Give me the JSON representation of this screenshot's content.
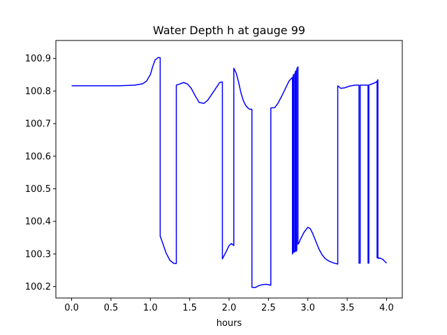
{
  "chart_data": {
    "type": "line",
    "title": "Water Depth h at gauge 99",
    "xlabel": "hours",
    "ylabel": "",
    "xlim": [
      -0.2,
      4.2
    ],
    "ylim": [
      100.165,
      100.955
    ],
    "grid": false,
    "xticks": [
      0.0,
      0.5,
      1.0,
      1.5,
      2.0,
      2.5,
      3.0,
      3.5,
      4.0
    ],
    "xtick_labels": [
      "0.0",
      "0.5",
      "1.0",
      "1.5",
      "2.0",
      "2.5",
      "3.0",
      "3.5",
      "4.0"
    ],
    "yticks": [
      100.2,
      100.3,
      100.4,
      100.5,
      100.6,
      100.7,
      100.8,
      100.9
    ],
    "ytick_labels": [
      "100.2",
      "100.3",
      "100.4",
      "100.5",
      "100.6",
      "100.7",
      "100.8",
      "100.9"
    ],
    "series": [
      {
        "color": "#0000ff",
        "x": [
          0.0,
          0.3,
          0.6,
          0.8,
          0.9,
          0.95,
          1.0,
          1.03,
          1.06,
          1.1,
          1.125,
          1.125,
          1.15,
          1.2,
          1.25,
          1.3,
          1.33,
          1.33,
          1.37,
          1.42,
          1.47,
          1.52,
          1.57,
          1.62,
          1.68,
          1.73,
          1.78,
          1.83,
          1.88,
          1.915,
          1.915,
          1.96,
          2.0,
          2.03,
          2.06,
          2.06,
          2.09,
          2.12,
          2.15,
          2.18,
          2.21,
          2.24,
          2.26,
          2.29,
          2.29,
          2.33,
          2.37,
          2.42,
          2.47,
          2.5,
          2.53,
          2.53,
          2.58,
          2.62,
          2.67,
          2.72,
          2.76,
          2.805,
          2.805,
          2.815,
          2.815,
          2.825,
          2.825,
          2.84,
          2.84,
          2.85,
          2.85,
          2.86,
          2.86,
          2.875,
          2.875,
          2.89,
          2.9,
          2.95,
          3.0,
          3.03,
          3.06,
          3.1,
          3.14,
          3.18,
          3.22,
          3.27,
          3.32,
          3.37,
          3.38,
          3.38,
          3.42,
          3.47,
          3.53,
          3.6,
          3.64,
          3.65,
          3.65,
          3.665,
          3.665,
          3.675,
          3.675,
          3.76,
          3.765,
          3.765,
          3.775,
          3.775,
          3.86,
          3.88,
          3.88,
          3.885,
          3.885,
          3.89,
          3.89,
          3.9,
          3.9,
          3.91,
          3.95,
          4.0
        ],
        "y": [
          100.816,
          100.816,
          100.816,
          100.818,
          100.822,
          100.83,
          100.85,
          100.875,
          100.895,
          100.903,
          100.902,
          100.355,
          100.338,
          100.303,
          100.28,
          100.271,
          100.271,
          100.818,
          100.821,
          100.826,
          100.822,
          100.808,
          100.785,
          100.765,
          100.762,
          100.772,
          100.79,
          100.808,
          100.826,
          100.828,
          100.285,
          100.306,
          100.326,
          100.332,
          100.326,
          100.87,
          100.855,
          100.828,
          100.795,
          100.771,
          100.756,
          100.748,
          100.744,
          100.744,
          100.198,
          100.197,
          100.202,
          100.206,
          100.207,
          100.206,
          100.204,
          100.748,
          100.749,
          100.762,
          100.785,
          100.81,
          100.83,
          100.842,
          100.3,
          100.31,
          100.848,
          100.852,
          100.305,
          100.31,
          100.858,
          100.862,
          100.308,
          100.312,
          100.868,
          100.874,
          100.33,
          100.335,
          100.342,
          100.366,
          100.382,
          100.378,
          100.364,
          100.34,
          100.316,
          100.298,
          100.286,
          100.278,
          100.273,
          100.27,
          100.269,
          100.816,
          100.808,
          100.81,
          100.815,
          100.818,
          100.818,
          100.818,
          100.272,
          100.272,
          100.818,
          100.818,
          100.818,
          100.818,
          100.818,
          100.272,
          100.272,
          100.818,
          100.826,
          100.83,
          100.288,
          100.288,
          100.834,
          100.834,
          100.288,
          100.288,
          100.286,
          100.288,
          100.284,
          100.272
        ]
      }
    ]
  }
}
